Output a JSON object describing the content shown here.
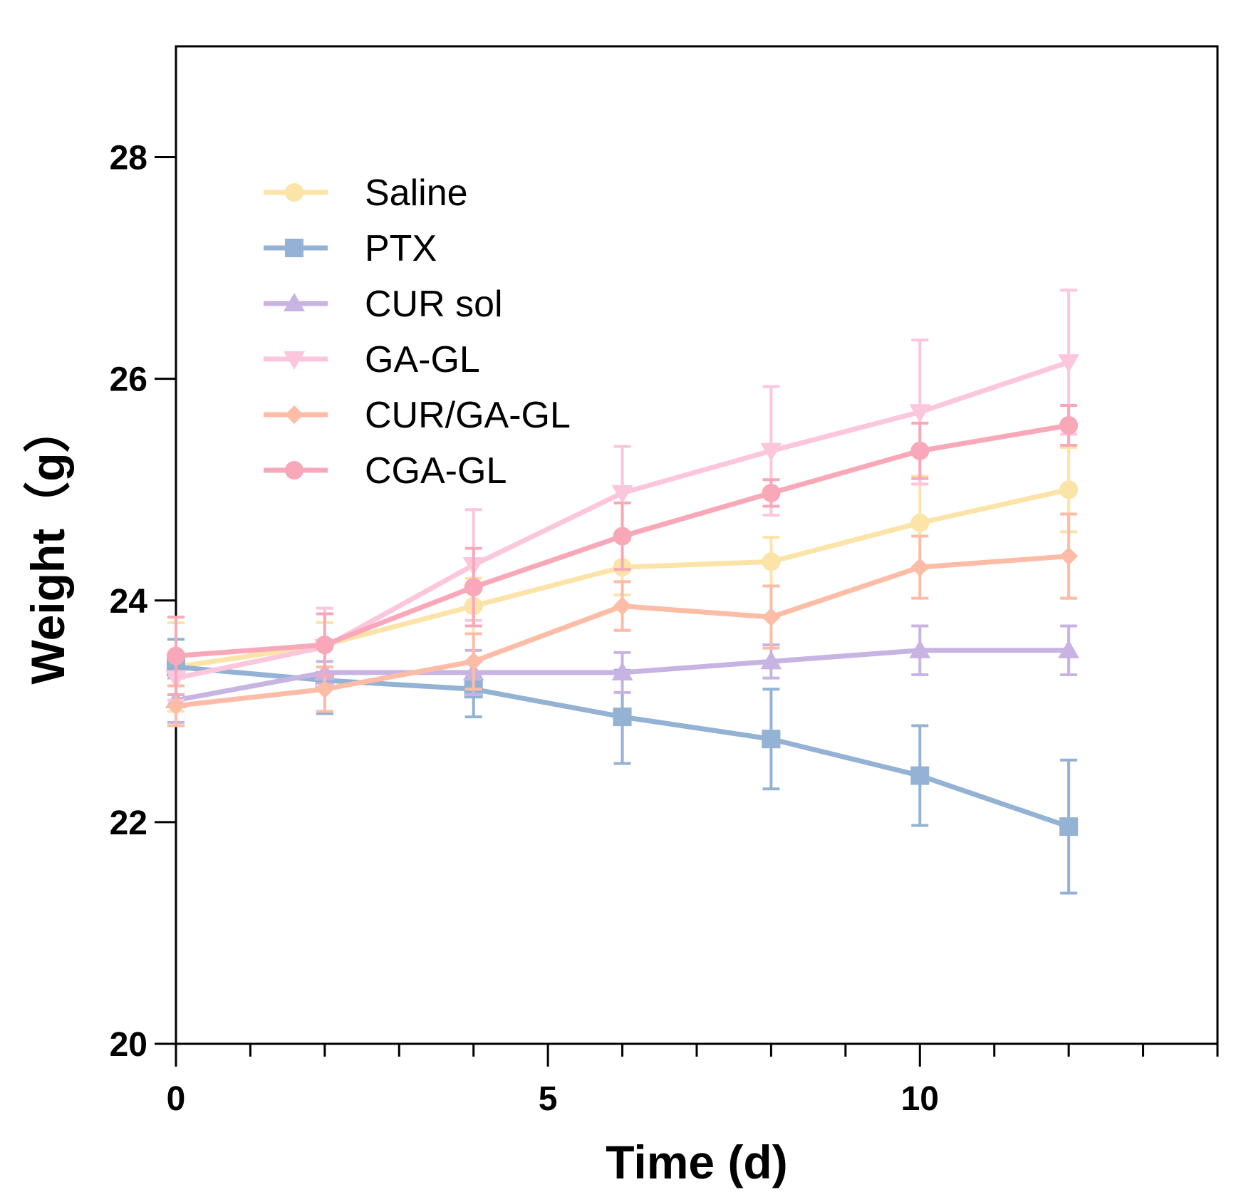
{
  "chart_data": {
    "type": "line",
    "title": "",
    "xlabel": "Time (d)",
    "ylabel": "Weight（g）",
    "xlim": [
      0,
      14
    ],
    "ylim": [
      20,
      29
    ],
    "x_ticks": [
      0,
      5,
      10
    ],
    "x_tick_labels": [
      "0",
      "5",
      "10"
    ],
    "y_ticks": [
      20,
      22,
      24,
      26,
      28
    ],
    "y_tick_labels": [
      "20",
      "22",
      "24",
      "26",
      "28"
    ],
    "grid": false,
    "legend_position": "top-left",
    "x": [
      0,
      2,
      4,
      6,
      8,
      10,
      12
    ],
    "series": [
      {
        "name": "Saline",
        "color": "#fce4a8",
        "marker": "circle",
        "values": [
          23.4,
          23.6,
          23.95,
          24.3,
          24.35,
          24.7,
          25.0
        ],
        "errors": [
          0.4,
          0.2,
          0.25,
          0.25,
          0.22,
          0.42,
          0.38
        ]
      },
      {
        "name": "PTX",
        "color": "#93b2d4",
        "marker": "square",
        "values": [
          23.4,
          23.28,
          23.2,
          22.95,
          22.75,
          22.42,
          21.96
        ],
        "errors": [
          0.25,
          0.3,
          0.25,
          0.42,
          0.45,
          0.45,
          0.6
        ]
      },
      {
        "name": "CUR sol",
        "color": "#c8b4e2",
        "marker": "triangle-up",
        "values": [
          23.1,
          23.35,
          23.35,
          23.35,
          23.45,
          23.55,
          23.55
        ],
        "errors": [
          0.2,
          0.1,
          0.2,
          0.18,
          0.15,
          0.22,
          0.22
        ]
      },
      {
        "name": "GA-GL",
        "color": "#fcc6dc",
        "marker": "triangle-down",
        "values": [
          23.3,
          23.58,
          24.32,
          24.97,
          25.35,
          25.7,
          26.15
        ],
        "errors": [
          0.2,
          0.35,
          0.5,
          0.42,
          0.58,
          0.65,
          0.65
        ]
      },
      {
        "name": "CUR/GA-GL",
        "color": "#fcbca6",
        "marker": "diamond",
        "values": [
          23.05,
          23.2,
          23.45,
          23.95,
          23.85,
          24.3,
          24.4
        ],
        "errors": [
          0.18,
          0.2,
          0.25,
          0.22,
          0.28,
          0.28,
          0.38
        ]
      },
      {
        "name": "CGA-GL",
        "color": "#f8a8b8",
        "marker": "circle",
        "values": [
          23.5,
          23.6,
          24.12,
          24.58,
          24.97,
          25.35,
          25.58
        ],
        "errors": [
          0.35,
          0.28,
          0.35,
          0.3,
          0.12,
          0.25,
          0.18
        ]
      }
    ]
  }
}
